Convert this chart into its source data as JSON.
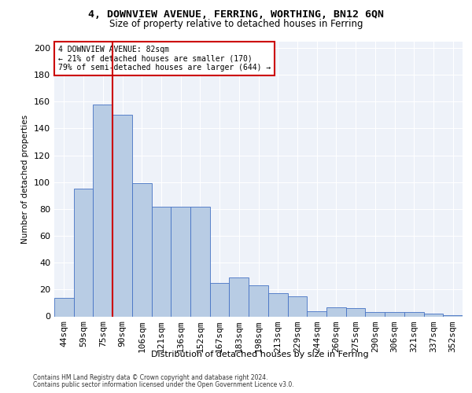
{
  "title": "4, DOWNVIEW AVENUE, FERRING, WORTHING, BN12 6QN",
  "subtitle": "Size of property relative to detached houses in Ferring",
  "xlabel": "Distribution of detached houses by size in Ferring",
  "ylabel": "Number of detached properties",
  "categories": [
    "44sqm",
    "59sqm",
    "75sqm",
    "90sqm",
    "106sqm",
    "121sqm",
    "136sqm",
    "152sqm",
    "167sqm",
    "183sqm",
    "198sqm",
    "213sqm",
    "229sqm",
    "244sqm",
    "260sqm",
    "275sqm",
    "290sqm",
    "306sqm",
    "321sqm",
    "337sqm",
    "352sqm"
  ],
  "values": [
    14,
    95,
    158,
    150,
    99,
    82,
    82,
    82,
    25,
    29,
    23,
    17,
    15,
    4,
    7,
    6,
    3,
    3,
    3,
    2,
    1
  ],
  "bar_color": "#b8cce4",
  "bar_edge_color": "#4472c4",
  "background_color": "#eef2f9",
  "grid_color": "#ffffff",
  "ylim": [
    0,
    205
  ],
  "yticks": [
    0,
    20,
    40,
    60,
    80,
    100,
    120,
    140,
    160,
    180,
    200
  ],
  "property_label": "4 DOWNVIEW AVENUE: 82sqm",
  "annotation_line1": "← 21% of detached houses are smaller (170)",
  "annotation_line2": "79% of semi-detached houses are larger (644) →",
  "annotation_box_color": "#ffffff",
  "annotation_box_edge": "#cc0000",
  "red_line_color": "#cc0000",
  "footer_line1": "Contains HM Land Registry data © Crown copyright and database right 2024.",
  "footer_line2": "Contains public sector information licensed under the Open Government Licence v3.0."
}
